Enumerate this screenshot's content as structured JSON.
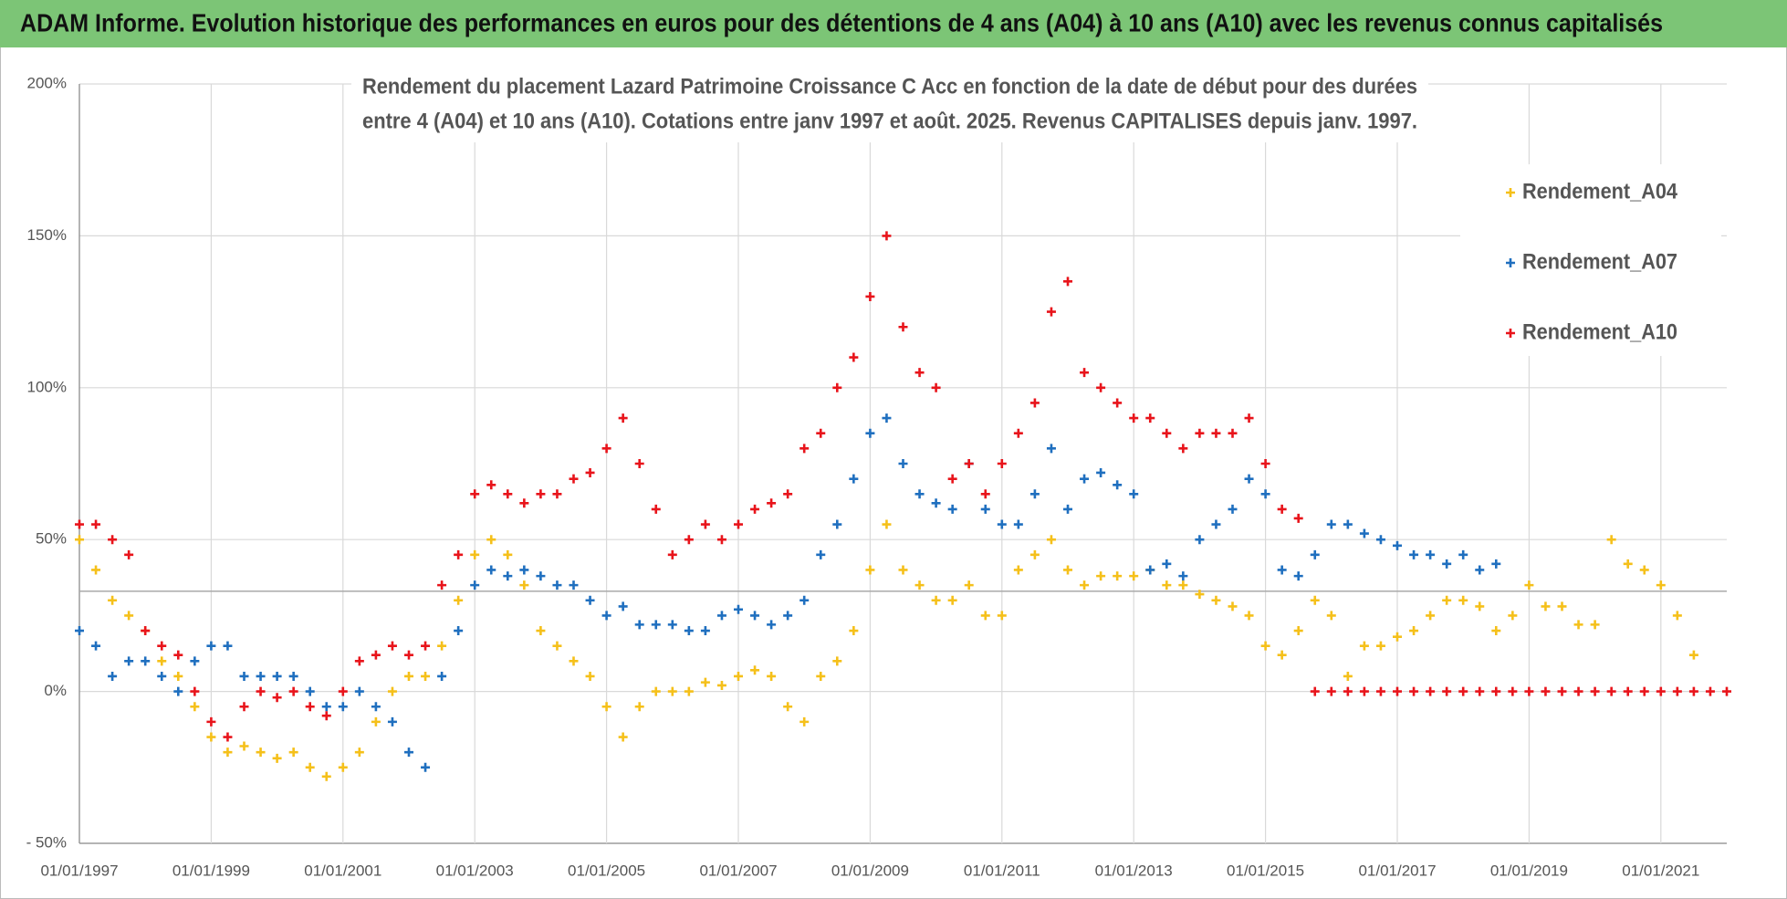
{
  "header": {
    "title": "ADAM Informe. Evolution historique des performances en euros pour des détentions de 4 ans (A04) à 10 ans (A10) avec les revenus connus capitalisés"
  },
  "chart_data": {
    "type": "scatter",
    "title": [
      "Rendement du placement Lazard Patrimoine Croissance C Acc en fonction de la date de début pour des durées",
      "entre 4 (A04) et 10 ans (A10).  Cotations entre janv 1997 et août. 2025. Revenus CAPITALISES depuis janv. 1997."
    ],
    "x": [
      "01/01/1997",
      "01/04/1997",
      "01/07/1997",
      "01/10/1997",
      "01/01/1998",
      "01/04/1998",
      "01/07/1998",
      "01/10/1998",
      "01/01/1999",
      "01/04/1999",
      "01/07/1999",
      "01/10/1999",
      "01/01/2000",
      "01/04/2000",
      "01/07/2000",
      "01/10/2000",
      "01/01/2001",
      "01/04/2001",
      "01/07/2001",
      "01/10/2001",
      "01/01/2002",
      "01/04/2002",
      "01/07/2002",
      "01/10/2002",
      "01/01/2003",
      "01/04/2003",
      "01/07/2003",
      "01/10/2003",
      "01/01/2004",
      "01/04/2004",
      "01/07/2004",
      "01/10/2004",
      "01/01/2005",
      "01/04/2005",
      "01/07/2005",
      "01/10/2005",
      "01/01/2006",
      "01/04/2006",
      "01/07/2006",
      "01/10/2006",
      "01/01/2007",
      "01/04/2007",
      "01/07/2007",
      "01/10/2007",
      "01/01/2008",
      "01/04/2008",
      "01/07/2008",
      "01/10/2008",
      "01/01/2009",
      "01/04/2009",
      "01/07/2009",
      "01/10/2009",
      "01/01/2010",
      "01/04/2010",
      "01/07/2010",
      "01/10/2010",
      "01/01/2011",
      "01/04/2011",
      "01/07/2011",
      "01/10/2011",
      "01/01/2012",
      "01/04/2012",
      "01/07/2012",
      "01/10/2012",
      "01/01/2013",
      "01/04/2013",
      "01/07/2013",
      "01/10/2013",
      "01/01/2014",
      "01/04/2014",
      "01/07/2014",
      "01/10/2014",
      "01/01/2015",
      "01/04/2015",
      "01/07/2015",
      "01/10/2015",
      "01/01/2016",
      "01/04/2016",
      "01/07/2016",
      "01/10/2016",
      "01/01/2017",
      "01/04/2017",
      "01/07/2017",
      "01/10/2017",
      "01/01/2018",
      "01/04/2018",
      "01/07/2018",
      "01/10/2018",
      "01/01/2019",
      "01/04/2019",
      "01/07/2019",
      "01/10/2019",
      "01/01/2020",
      "01/04/2020",
      "01/07/2020",
      "01/10/2020",
      "01/01/2021",
      "01/04/2021",
      "01/07/2021",
      "01/10/2021",
      "01/01/2022"
    ],
    "series": [
      {
        "name": "Rendement_A04",
        "color": "#f5c01a",
        "values": [
          50,
          40,
          30,
          25,
          20,
          10,
          5,
          -5,
          -15,
          -20,
          -18,
          -20,
          -22,
          -20,
          -25,
          -28,
          -25,
          -20,
          -10,
          0,
          5,
          5,
          15,
          30,
          45,
          50,
          45,
          35,
          20,
          15,
          10,
          5,
          -5,
          -15,
          -5,
          0,
          0,
          0,
          3,
          2,
          5,
          7,
          5,
          -5,
          -10,
          5,
          10,
          20,
          40,
          55,
          40,
          35,
          30,
          30,
          35,
          25,
          25,
          40,
          45,
          50,
          40,
          35,
          38,
          38,
          38,
          40,
          35,
          35,
          32,
          30,
          28,
          25,
          15,
          12,
          20,
          30,
          25,
          5,
          15,
          15,
          18,
          20,
          25,
          30,
          30,
          28,
          20,
          25,
          35,
          28,
          28,
          22,
          22,
          50,
          42,
          40,
          35,
          25,
          12,
          null,
          null
        ]
      },
      {
        "name": "Rendement_A07",
        "color": "#1f6fbf",
        "values": [
          20,
          15,
          5,
          10,
          10,
          5,
          0,
          10,
          15,
          15,
          5,
          5,
          5,
          5,
          0,
          -5,
          -5,
          0,
          -5,
          -10,
          -20,
          -25,
          5,
          20,
          35,
          40,
          38,
          40,
          38,
          35,
          35,
          30,
          25,
          28,
          22,
          22,
          22,
          20,
          20,
          25,
          27,
          25,
          22,
          25,
          30,
          45,
          55,
          70,
          85,
          90,
          75,
          65,
          62,
          60,
          75,
          60,
          55,
          55,
          65,
          80,
          60,
          70,
          72,
          68,
          65,
          40,
          42,
          38,
          50,
          55,
          60,
          70,
          65,
          40,
          38,
          45,
          55,
          55,
          52,
          50,
          48,
          45,
          45,
          42,
          45,
          40,
          42,
          null,
          null,
          null,
          null,
          null,
          null,
          null,
          null,
          null,
          null,
          null,
          null,
          null,
          null
        ]
      },
      {
        "name": "Rendement_A10",
        "color": "#e8141b",
        "values": [
          55,
          55,
          50,
          45,
          20,
          15,
          12,
          0,
          -10,
          -15,
          -5,
          0,
          -2,
          0,
          -5,
          -8,
          0,
          10,
          12,
          15,
          12,
          15,
          35,
          45,
          65,
          68,
          65,
          62,
          65,
          65,
          70,
          72,
          80,
          90,
          75,
          60,
          45,
          50,
          55,
          50,
          55,
          60,
          62,
          65,
          80,
          85,
          100,
          110,
          130,
          150,
          120,
          105,
          100,
          70,
          75,
          65,
          75,
          85,
          95,
          125,
          135,
          105,
          100,
          95,
          90,
          90,
          85,
          80,
          85,
          85,
          85,
          90,
          75,
          60,
          57,
          0,
          0,
          0,
          0,
          0,
          0,
          0,
          0,
          0,
          0,
          0,
          0,
          0,
          0,
          0,
          0,
          0,
          0,
          0,
          0,
          0,
          0,
          0,
          0,
          0,
          0
        ]
      }
    ],
    "xlim": [
      "01/01/1997",
      "01/01/2022"
    ],
    "xticks": [
      "01/01/1997",
      "01/01/1999",
      "01/01/2001",
      "01/01/2003",
      "01/01/2005",
      "01/01/2007",
      "01/01/2009",
      "01/01/2011",
      "01/01/2013",
      "01/01/2015",
      "01/01/2017",
      "01/01/2019",
      "01/01/2021"
    ],
    "ylim": [
      -50,
      200
    ],
    "yticks": [
      {
        "value": -50,
        "label": "- 50%"
      },
      {
        "value": 0,
        "label": "0%"
      },
      {
        "value": 50,
        "label": "50%"
      },
      {
        "value": 100,
        "label": "100%"
      },
      {
        "value": 150,
        "label": "150%"
      },
      {
        "value": 200,
        "label": "200%"
      }
    ],
    "reference_line": 33,
    "grid": true,
    "legend": "upper right"
  }
}
